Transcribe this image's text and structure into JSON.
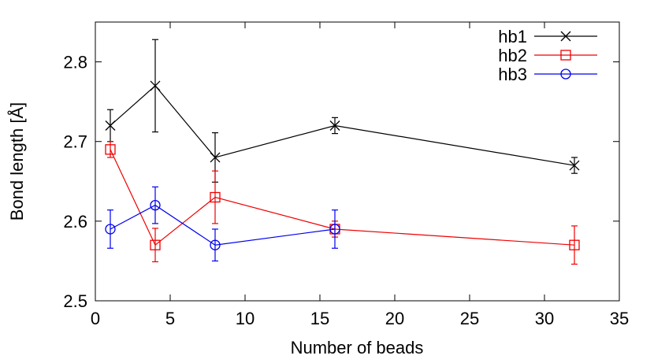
{
  "chart_data": {
    "type": "line",
    "title": "",
    "xlabel": "Number of beads",
    "ylabel": "Bond length [Å]",
    "xlim": [
      0,
      35
    ],
    "ylim": [
      2.5,
      2.85
    ],
    "xticks": [
      0,
      5,
      10,
      15,
      20,
      25,
      30,
      35
    ],
    "yticks": [
      2.5,
      2.6,
      2.7,
      2.8
    ],
    "xtick_labels": [
      "0",
      "5",
      "10",
      "15",
      "20",
      "25",
      "30",
      "35"
    ],
    "ytick_labels": [
      "2.5",
      "2.6",
      "2.7",
      "2.8"
    ],
    "grid": false,
    "legend_position": "top-right",
    "series": [
      {
        "name": "hb1",
        "color": "#000000",
        "marker": "x",
        "x": [
          1,
          4,
          8,
          16,
          32
        ],
        "y": [
          2.72,
          2.77,
          2.68,
          2.72,
          2.67
        ],
        "yerr": [
          0.02,
          0.058,
          0.031,
          0.01,
          0.01
        ]
      },
      {
        "name": "hb2",
        "color": "#ee0000",
        "marker": "square",
        "x": [
          1,
          4,
          8,
          16,
          32
        ],
        "y": [
          2.69,
          2.57,
          2.63,
          2.59,
          2.57
        ],
        "yerr": [
          0.01,
          0.021,
          0.033,
          0.01,
          0.024
        ]
      },
      {
        "name": "hb3",
        "color": "#0000ee",
        "marker": "circle",
        "x": [
          1,
          4,
          8,
          16
        ],
        "y": [
          2.59,
          2.62,
          2.57,
          2.59
        ],
        "yerr": [
          0.024,
          0.023,
          0.02,
          0.024
        ]
      }
    ]
  }
}
